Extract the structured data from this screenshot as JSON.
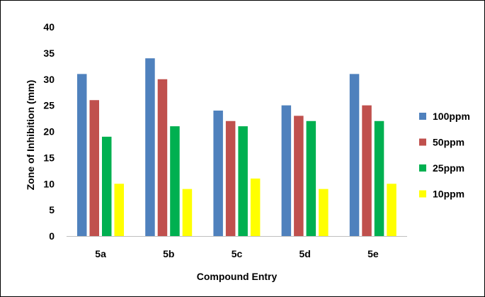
{
  "chart_data": {
    "type": "bar",
    "categories": [
      "5a",
      "5b",
      "5c",
      "5d",
      "5e"
    ],
    "series": [
      {
        "name": "100ppm",
        "color": "#4F81BD",
        "values": [
          31,
          34,
          24,
          25,
          31
        ]
      },
      {
        "name": "50ppm",
        "color": "#C0504D",
        "values": [
          26,
          30,
          22,
          23,
          25
        ]
      },
      {
        "name": "25ppm",
        "color": "#00B050",
        "values": [
          19,
          21,
          21,
          22,
          22
        ]
      },
      {
        "name": "10ppm",
        "color": "#FFFF00",
        "values": [
          10,
          9,
          11,
          9,
          10
        ]
      }
    ],
    "xlabel": "Compound Entry",
    "ylabel": "Zone of Inhibition (mm)",
    "ylim": [
      0,
      40
    ],
    "yticks": [
      "0",
      "5",
      "10",
      "15",
      "20",
      "25",
      "30",
      "35",
      "40"
    ],
    "grid": false,
    "legend_position": "right"
  }
}
